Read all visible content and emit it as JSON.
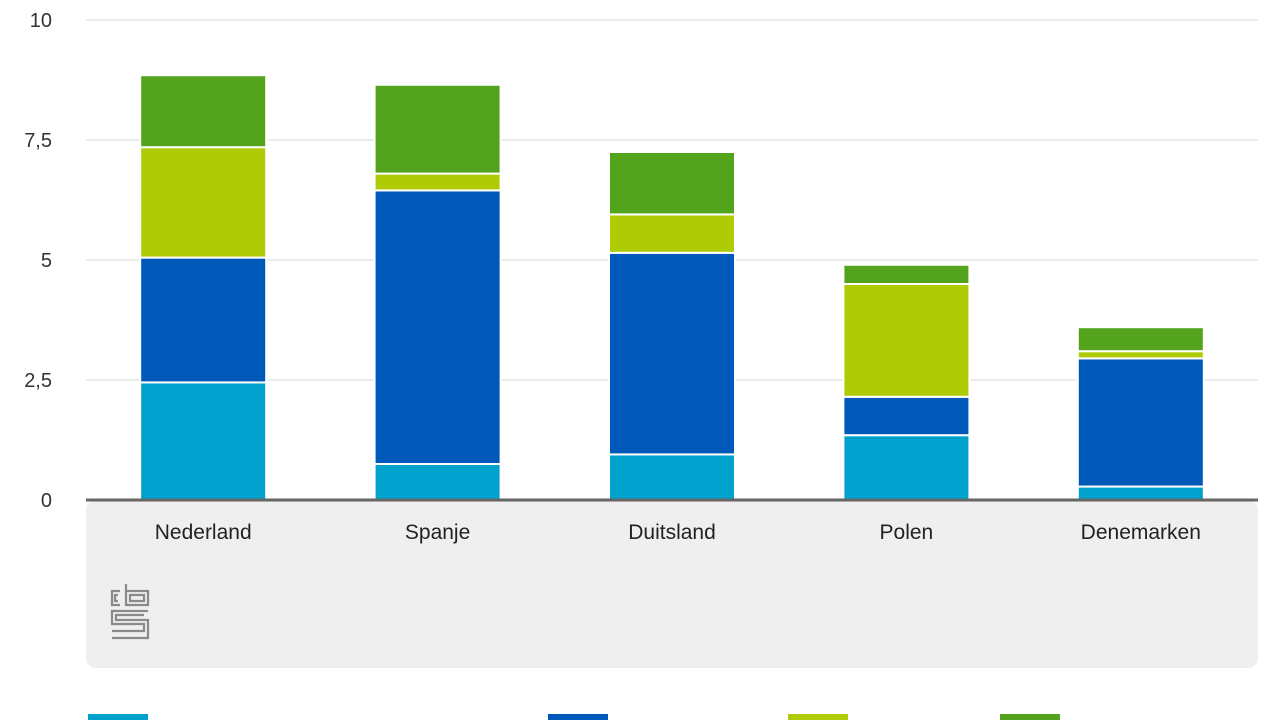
{
  "chart_data": {
    "type": "bar",
    "stacked": true,
    "categories": [
      "Nederland",
      "Spanje",
      "Duitsland",
      "Polen",
      "Denemarken"
    ],
    "series": [
      {
        "color": "#00a1cd",
        "values": [
          2.45,
          0.75,
          0.95,
          1.35,
          0.28
        ]
      },
      {
        "color": "#0058b8",
        "values": [
          2.6,
          5.7,
          4.2,
          0.8,
          2.67
        ]
      },
      {
        "color": "#afcb05",
        "values": [
          2.3,
          0.35,
          0.8,
          2.35,
          0.15
        ]
      },
      {
        "color": "#53a31d",
        "values": [
          1.5,
          1.85,
          1.3,
          0.4,
          0.5
        ]
      }
    ],
    "ylim": [
      0,
      10
    ],
    "yticks": [
      0,
      2.5,
      5,
      7.5,
      10
    ],
    "ytick_labels": [
      "0",
      "2,5",
      "5",
      "7,5",
      "10"
    ],
    "grid": true,
    "legend_placement": "bottom",
    "title": "",
    "xlabel": "",
    "ylabel": ""
  },
  "logo": {
    "name": "cbs-logo-icon",
    "text": "cbs"
  },
  "colors": {
    "axis": "#666666",
    "grid": "#d9d9d9",
    "panel": "#efefef",
    "logo": "#8a8a8a"
  }
}
